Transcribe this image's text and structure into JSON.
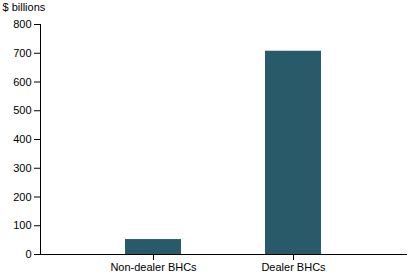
{
  "chart_data": {
    "type": "bar",
    "y_label": "$ billions",
    "categories": [
      "Non-dealer BHCs",
      "Dealer BHCs"
    ],
    "values": [
      52,
      707
    ],
    "color": "#285a6a",
    "ylim": [
      0,
      800
    ],
    "yticks": [
      0,
      100,
      200,
      300,
      400,
      500,
      600,
      700,
      800
    ],
    "grid": false
  }
}
